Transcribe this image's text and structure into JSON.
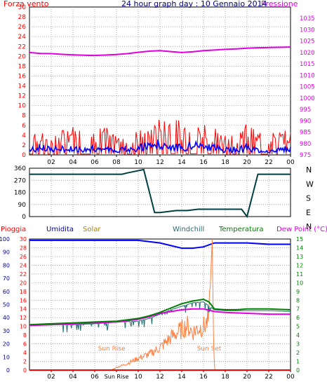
{
  "title": "24 hour graph day : 10 Gennaio 2014",
  "chart_data": [
    {
      "type": "line",
      "title": "24 hour graph day : 10 Gennaio 2014",
      "ylabel_left": "Forza vento",
      "ylabel_right": "Pressione",
      "xlim": [
        0,
        24
      ],
      "x_ticks": [
        "02",
        "04",
        "06",
        "08",
        "10",
        "12",
        "14",
        "16",
        "18",
        "20",
        "22",
        "00"
      ],
      "left_ylim": [
        0,
        30
      ],
      "left_ticks": [
        "0",
        "2",
        "4",
        "6",
        "8",
        "10",
        "12",
        "14",
        "16",
        "18",
        "20",
        "22",
        "24",
        "26",
        "28",
        "30"
      ],
      "right_ylim": [
        975,
        1040
      ],
      "right_ticks": [
        "975",
        "980",
        "985",
        "990",
        "995",
        "1000",
        "1005",
        "1010",
        "1015",
        "1020",
        "1025",
        "1030",
        "1035"
      ],
      "grid": true,
      "colors": {
        "gust": "#ff0000",
        "wind": "#0000ff",
        "pressure": "#e000e0"
      },
      "series": [
        {
          "name": "Pressione",
          "axis": "right",
          "color": "#e000e0",
          "x": [
            0,
            1,
            2,
            3,
            4,
            5,
            6,
            7,
            8,
            9,
            10,
            11,
            12,
            13,
            14,
            15,
            16,
            17,
            18,
            19,
            20,
            21,
            22,
            23,
            24
          ],
          "values": [
            1020.0,
            1019.6,
            1019.5,
            1019.2,
            1019.0,
            1018.8,
            1018.7,
            1018.9,
            1019.1,
            1019.5,
            1020.1,
            1020.6,
            1020.8,
            1020.4,
            1020.0,
            1020.3,
            1020.8,
            1021.1,
            1021.4,
            1021.6,
            1021.9,
            1022.1,
            1022.2,
            1022.3,
            1022.4
          ]
        },
        {
          "axis": "left",
          "color": "#ff0000",
          "x": [
            0,
            1,
            2,
            3,
            4,
            5,
            6,
            7,
            8,
            9,
            10,
            11,
            12,
            13,
            14,
            15,
            16,
            17,
            18,
            19,
            20,
            21,
            22,
            23,
            24
          ],
          "values": [
            3.5,
            4.0,
            3.2,
            3.8,
            4.3,
            3.6,
            3.9,
            4.2,
            3.3,
            3.7,
            3.6,
            4.5,
            5.4,
            5.5,
            4.8,
            4.4,
            5.4,
            4.0,
            3.5,
            3.4,
            4.6,
            3.2,
            3.1,
            3.5,
            3.6
          ]
        },
        {
          "axis": "left",
          "color": "#0000ff",
          "x": [
            0,
            1,
            2,
            3,
            4,
            5,
            6,
            7,
            8,
            9,
            10,
            11,
            12,
            13,
            14,
            15,
            16,
            17,
            18,
            19,
            20,
            21,
            22,
            23,
            24
          ],
          "values": [
            1.2,
            1.6,
            1.3,
            1.4,
            1.5,
            1.2,
            1.6,
            1.4,
            1.2,
            1.3,
            1.6,
            2.2,
            2.6,
            2.1,
            1.7,
            2.3,
            2.4,
            1.7,
            1.2,
            1.3,
            1.8,
            1.1,
            1.0,
            1.3,
            1.4
          ]
        }
      ]
    },
    {
      "type": "line",
      "xlim": [
        0,
        24
      ],
      "ylim": [
        0,
        360
      ],
      "left_ticks": [
        "0",
        "90",
        "180",
        "270",
        "360"
      ],
      "right_labels": [
        "N",
        "W",
        "S",
        "E",
        "N"
      ],
      "grid": true,
      "series": [
        {
          "color": "#004040",
          "x": [
            0,
            8.5,
            9,
            10.5,
            11.5,
            12.0,
            13.5,
            14.5,
            15.5,
            19.5,
            20,
            21,
            24
          ],
          "values": [
            315,
            315,
            325,
            350,
            30,
            30,
            45,
            45,
            55,
            55,
            0,
            315,
            315
          ]
        }
      ]
    },
    {
      "type": "line",
      "legend": [
        "Pioggia",
        "Umidita",
        "Solar",
        "Windchill",
        "Temperatura",
        "Dew Point (°C)"
      ],
      "legend_colors": [
        "#ff0000",
        "#0000a0",
        "#b08000",
        "#207070",
        "#008000",
        "#e000e0"
      ],
      "xlim": [
        0,
        24
      ],
      "x_ticks": [
        "02",
        "04",
        "06",
        "Sun Rise",
        "10",
        "12",
        "14",
        "16",
        "18",
        "20",
        "22",
        "00"
      ],
      "left_ylim": [
        0,
        100
      ],
      "left_ticks": [
        "0",
        "10",
        "20",
        "30",
        "40",
        "50",
        "60",
        "70",
        "80",
        "90",
        "100"
      ],
      "mid_ylim": [
        0,
        30
      ],
      "mid_ticks": [
        "0",
        "2",
        "4",
        "6",
        "8",
        "10",
        "12",
        "14",
        "16",
        "18",
        "20",
        "22",
        "24",
        "26",
        "28",
        "30"
      ],
      "right_ylim": [
        0,
        15
      ],
      "right_ticks": [
        "0",
        "1",
        "2",
        "3",
        "4",
        "5",
        "6",
        "7",
        "8",
        "9",
        "10",
        "11",
        "12",
        "13",
        "14",
        "15"
      ],
      "annotations": [
        "Sun Rise",
        "Sun Set"
      ],
      "grid": true,
      "series": [
        {
          "name": "Umidita",
          "axis": "left",
          "color": "#0000ff",
          "x": [
            0,
            2,
            4,
            6,
            8,
            10,
            11,
            12,
            13,
            14,
            15,
            16,
            17,
            18,
            20,
            22,
            24
          ],
          "values": [
            99,
            99,
            99,
            99,
            99,
            99,
            98,
            97,
            95,
            93,
            93,
            94,
            97,
            97,
            97,
            96,
            96
          ]
        },
        {
          "name": "Solar",
          "axis": "left",
          "color": "#ff8040",
          "x": [
            0,
            7.5,
            8.0,
            9.0,
            10.0,
            11.0,
            12.0,
            13.0,
            14.0,
            14.5,
            15.0,
            15.5,
            16.0,
            16.5,
            16.8,
            16.9,
            17.0,
            24
          ],
          "values": [
            0,
            0,
            2,
            5,
            9,
            12,
            17,
            25,
            31,
            34,
            29,
            32,
            33,
            38,
            100,
            40,
            0,
            0
          ]
        },
        {
          "name": "Temperatura",
          "axis": "right",
          "color": "#008000",
          "x": [
            0,
            2,
            4,
            6,
            8,
            10,
            11,
            12,
            13,
            14,
            15,
            16,
            16.5,
            17,
            18,
            19,
            20,
            22,
            24
          ],
          "values": [
            5.2,
            5.3,
            5.4,
            5.5,
            5.6,
            5.9,
            6.2,
            6.6,
            7.1,
            7.6,
            7.9,
            8.1,
            7.8,
            7.0,
            6.9,
            6.9,
            7.0,
            7.0,
            6.9
          ]
        },
        {
          "name": "Windchill",
          "axis": "right",
          "color": "#207070",
          "x": [
            0,
            2,
            4,
            6,
            8,
            10,
            11,
            12,
            13,
            14,
            15,
            16,
            17,
            18,
            20,
            22,
            24
          ],
          "values": [
            5.1,
            5.2,
            5.2,
            5.3,
            5.5,
            5.6,
            5.9,
            6.4,
            6.9,
            7.3,
            7.7,
            7.8,
            6.9,
            6.8,
            6.8,
            6.8,
            6.7
          ]
        },
        {
          "name": "Dew Point (°C)",
          "axis": "right",
          "color": "#e000e0",
          "x": [
            0,
            2,
            4,
            6,
            8,
            10,
            11,
            12,
            13,
            14,
            15,
            16,
            17,
            18,
            20,
            22,
            24
          ],
          "values": [
            5.1,
            5.2,
            5.3,
            5.4,
            5.5,
            5.8,
            6.1,
            6.5,
            6.7,
            6.9,
            7.0,
            7.0,
            6.7,
            6.6,
            6.5,
            6.4,
            6.4
          ]
        },
        {
          "name": "Pioggia",
          "axis": "mid",
          "color": "#ff0000",
          "x": [
            0,
            24
          ],
          "values": [
            0,
            0
          ]
        }
      ]
    }
  ]
}
